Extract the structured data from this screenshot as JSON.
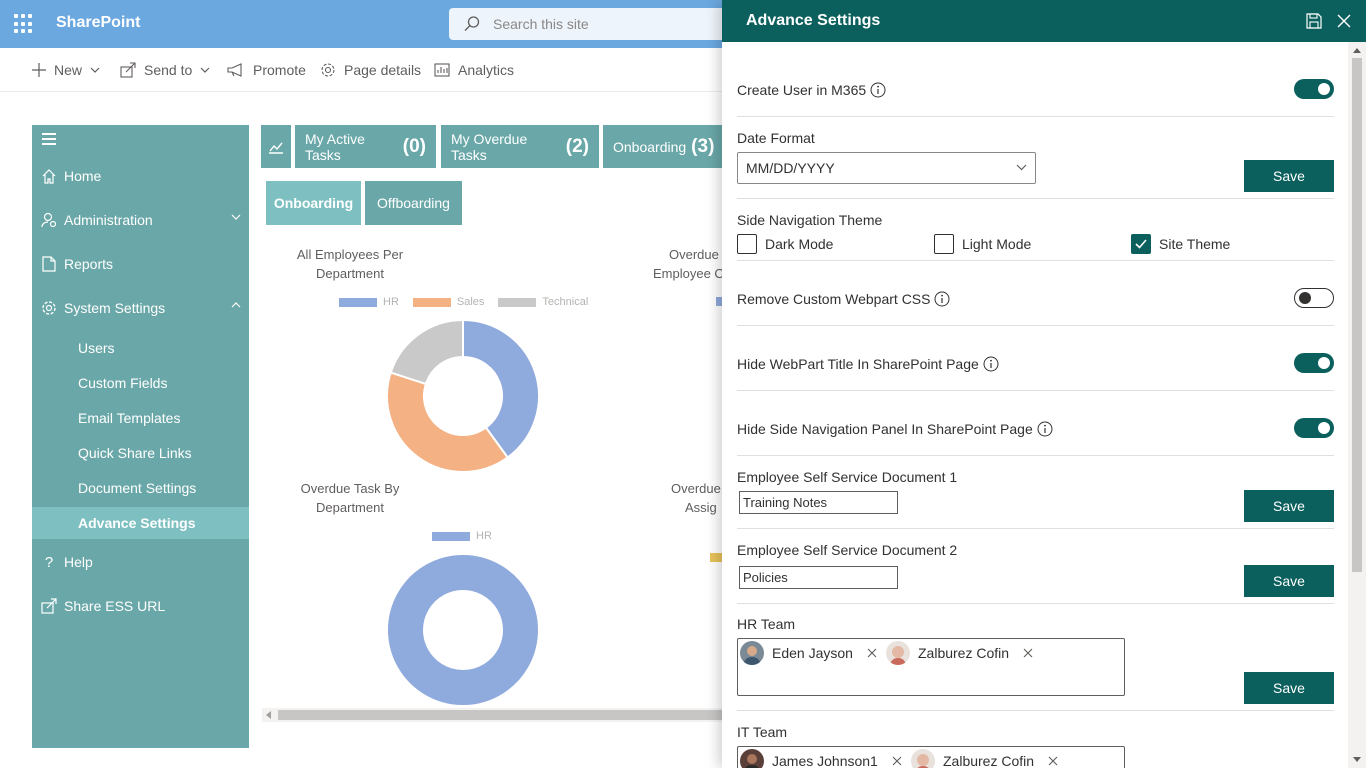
{
  "suite": {
    "brand": "SharePoint",
    "search_placeholder": "Search this site"
  },
  "commands": {
    "new": "New",
    "send_to": "Send to",
    "promote": "Promote",
    "page_details": "Page details",
    "analytics": "Analytics"
  },
  "nav": {
    "home": "Home",
    "administration": "Administration",
    "reports": "Reports",
    "system_settings": "System Settings",
    "sub": [
      "Users",
      "Custom Fields",
      "Email Templates",
      "Quick Share Links",
      "Document Settings",
      "Advance Settings"
    ],
    "help": "Help",
    "share": "Share ESS URL"
  },
  "tiles": {
    "active_label": "My Active Tasks",
    "active_count": "(0)",
    "overdue_label": "My Overdue Tasks",
    "overdue_count": "(2)",
    "onboarding_label": "Onboarding",
    "onboarding_count": "(3)"
  },
  "tabs": {
    "onboarding": "Onboarding",
    "offboarding": "Offboarding"
  },
  "charts": {
    "c1": {
      "title1": "All Employees Per",
      "title2": "Department"
    },
    "c2": {
      "title1": "Overdue",
      "title2": "Employee O"
    },
    "c3": {
      "title1": "Overdue Task By",
      "title2": "Department"
    },
    "c4": {
      "title1": "Overdue",
      "title2": "Assig"
    }
  },
  "chart_data": [
    {
      "type": "pie",
      "title": "All Employees Per Department",
      "categories": [
        "HR",
        "Sales",
        "Technical"
      ],
      "values": [
        40,
        40,
        20
      ],
      "colors": [
        "#8faadc",
        "#f4b183",
        "#c9c9c9"
      ],
      "legend": "top"
    },
    {
      "type": "pie",
      "title": "Overdue Task By Department",
      "categories": [
        "HR"
      ],
      "values": [
        100
      ],
      "colors": [
        "#8faadc"
      ],
      "legend": "top"
    }
  ],
  "panel": {
    "title": "Advance Settings",
    "create_user": "Create User in M365",
    "date_format_label": "Date Format",
    "date_format_value": "MM/DD/YYYY",
    "save": "Save",
    "side_nav_theme": "Side Navigation Theme",
    "dark_mode": "Dark Mode",
    "light_mode": "Light Mode",
    "site_theme": "Site Theme",
    "remove_css": "Remove Custom Webpart CSS",
    "hide_title": "Hide WebPart Title In SharePoint Page",
    "hide_nav": "Hide Side Navigation Panel In SharePoint Page",
    "ess1_label": "Employee Self Service Document 1",
    "ess1_value": "Training Notes",
    "ess2_label": "Employee Self Service Document 2",
    "ess2_value": "Policies",
    "hr_team": "HR Team",
    "hr_people": [
      "Eden Jayson",
      "Zalburez Cofin"
    ],
    "it_team": "IT Team",
    "it_people": [
      "James Johnson1",
      "Zalburez Cofin"
    ]
  },
  "colors": {
    "teal": "#0b605e",
    "nav_teal": "#6aa7a8",
    "suite_blue": "#6ba8e0"
  }
}
